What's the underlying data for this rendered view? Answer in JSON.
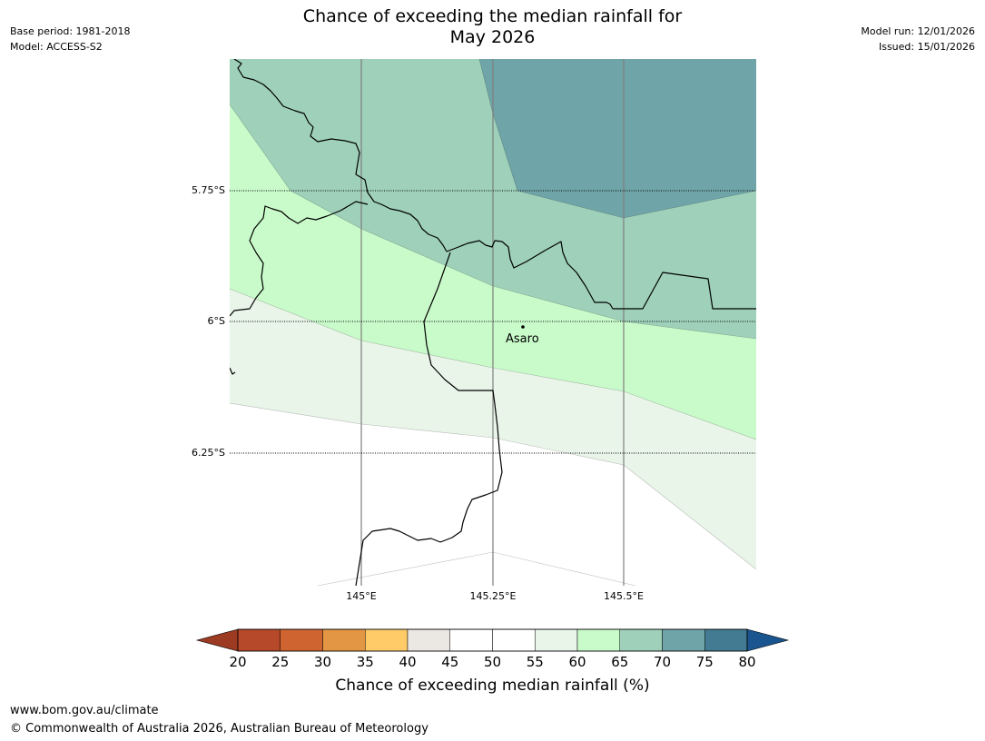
{
  "header": {
    "base_period": "Base period: 1981-2018",
    "model": "Model: ACCESS-S2",
    "model_run": "Model run: 12/01/2026",
    "issued": "Issued: 15/01/2026",
    "title_line1": "Chance of exceeding the median rainfall for",
    "title_line2": "May 2026"
  },
  "map": {
    "lat_labels": [
      "5.75°S",
      "6°S",
      "6.25°S"
    ],
    "lon_labels": [
      "145°E",
      "145.25°E",
      "145.5°E"
    ],
    "place": {
      "name": "Asaro"
    },
    "zones": [
      {
        "name": "zone-70-75",
        "color": "#6fa5a8"
      },
      {
        "name": "zone-65-70",
        "color": "#9ed0ba"
      },
      {
        "name": "zone-60-65",
        "color": "#c9fbca"
      },
      {
        "name": "zone-55-60",
        "color": "#e9f5e9"
      },
      {
        "name": "zone-50-55",
        "color": "#ffffff"
      }
    ]
  },
  "colorbar": {
    "title": "Chance of exceeding median rainfall (%)",
    "ticks": [
      "20",
      "25",
      "30",
      "35",
      "40",
      "45",
      "50",
      "55",
      "60",
      "65",
      "70",
      "75",
      "80"
    ],
    "under_color": "#9c3a22",
    "over_color": "#1a5590",
    "colors": [
      "#b5492a",
      "#d06431",
      "#e39644",
      "#fecb68",
      "#ebe8e4",
      "#ffffff",
      "#ffffff",
      "#e9f5e9",
      "#c9fbca",
      "#9ed0ba",
      "#6fa5a8",
      "#427b92"
    ]
  },
  "footer": {
    "url": "www.bom.gov.au/climate",
    "copyright": "© Commonwealth of Australia 2026, Australian Bureau of Meteorology"
  }
}
